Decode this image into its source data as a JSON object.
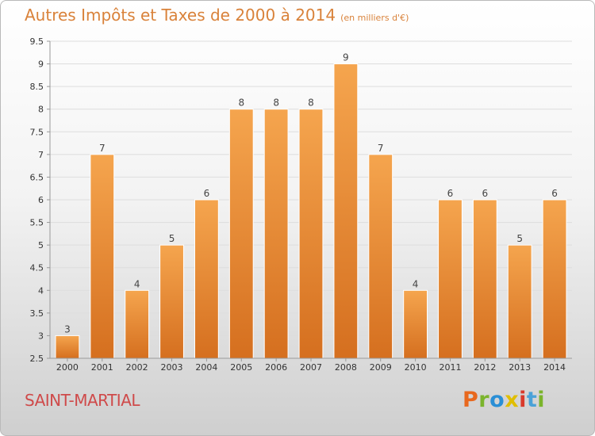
{
  "header": {
    "title": "Autres Impôts et Taxes de 2000 à 2014",
    "subtitle": "(en milliers d'€)"
  },
  "footer": {
    "commune": "SAINT-MARTIAL",
    "logo_letters": [
      "P",
      "r",
      "o",
      "x",
      "i",
      "t",
      "i"
    ],
    "logo_colors": [
      "#e8681e",
      "#7bb42c",
      "#2a8fd6",
      "#e0be00",
      "#d93a2b",
      "#4aa2d8",
      "#7bb42c"
    ]
  },
  "chart_data": {
    "type": "bar",
    "title": "Autres Impôts et Taxes de 2000 à 2014",
    "subtitle": "(en milliers d'€)",
    "categories": [
      "2000",
      "2001",
      "2002",
      "2003",
      "2004",
      "2005",
      "2006",
      "2007",
      "2008",
      "2009",
      "2010",
      "2011",
      "2012",
      "2013",
      "2014"
    ],
    "values": [
      3,
      7,
      4,
      5,
      6,
      8,
      8,
      8,
      9,
      7,
      4,
      6,
      6,
      5,
      6
    ],
    "data_labels": [
      "3",
      "7",
      "4",
      "5",
      "6",
      "8",
      "8",
      "8",
      "9",
      "7",
      "4",
      "6",
      "6",
      "5",
      "6"
    ],
    "ylim": [
      2.5,
      9.5
    ],
    "yticks": [
      2.5,
      3,
      3.5,
      4,
      4.5,
      5,
      5.5,
      6,
      6.5,
      7,
      7.5,
      8,
      8.5,
      9,
      9.5
    ],
    "ytick_labels": [
      "2.5",
      "3",
      "3.5",
      "4",
      "4.5",
      "5",
      "5.5",
      "6",
      "6.5",
      "7",
      "7.5",
      "8",
      "8.5",
      "9",
      "9.5"
    ],
    "grid": true,
    "xlabel": "",
    "ylabel": "",
    "colors": {
      "bar_top": "#f5a54e",
      "bar_bottom": "#d56f1f",
      "grid": "#dddddd",
      "axis": "#999999"
    }
  }
}
